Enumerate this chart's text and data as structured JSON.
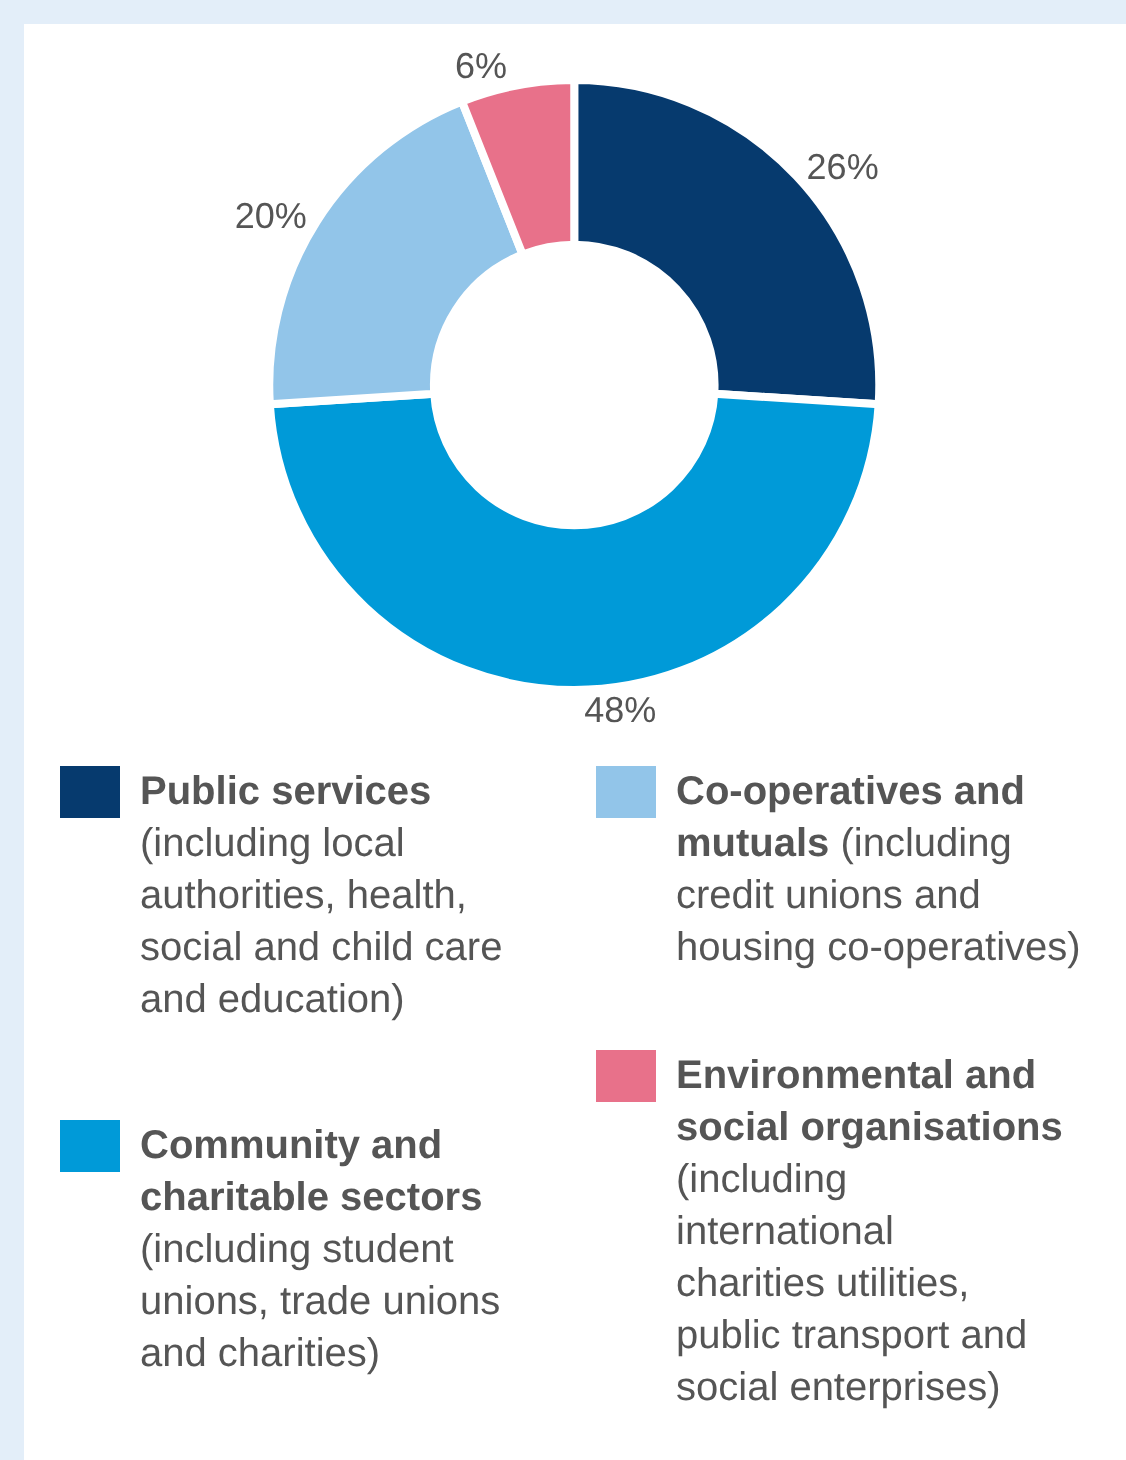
{
  "chart_data": {
    "type": "donut",
    "categories": [
      "Public services",
      "Community and charitable sectors",
      "Co-operatives and mutuals",
      "Environmental and social organisations"
    ],
    "values": [
      26,
      48,
      20,
      6
    ],
    "colors": [
      "#063a6e",
      "#009ad8",
      "#92c5e9",
      "#e8718a"
    ],
    "value_labels": [
      "26%",
      "48%",
      "20%",
      "6%"
    ],
    "annotations": [
      "(including local authorities, health, social and child care and education)",
      "(including student unions, trade unions and charities)",
      "(including credit unions and housing co-operatives)",
      "(including international charities utilities, public transport and social enterprises)"
    ],
    "legend": "bottom"
  }
}
